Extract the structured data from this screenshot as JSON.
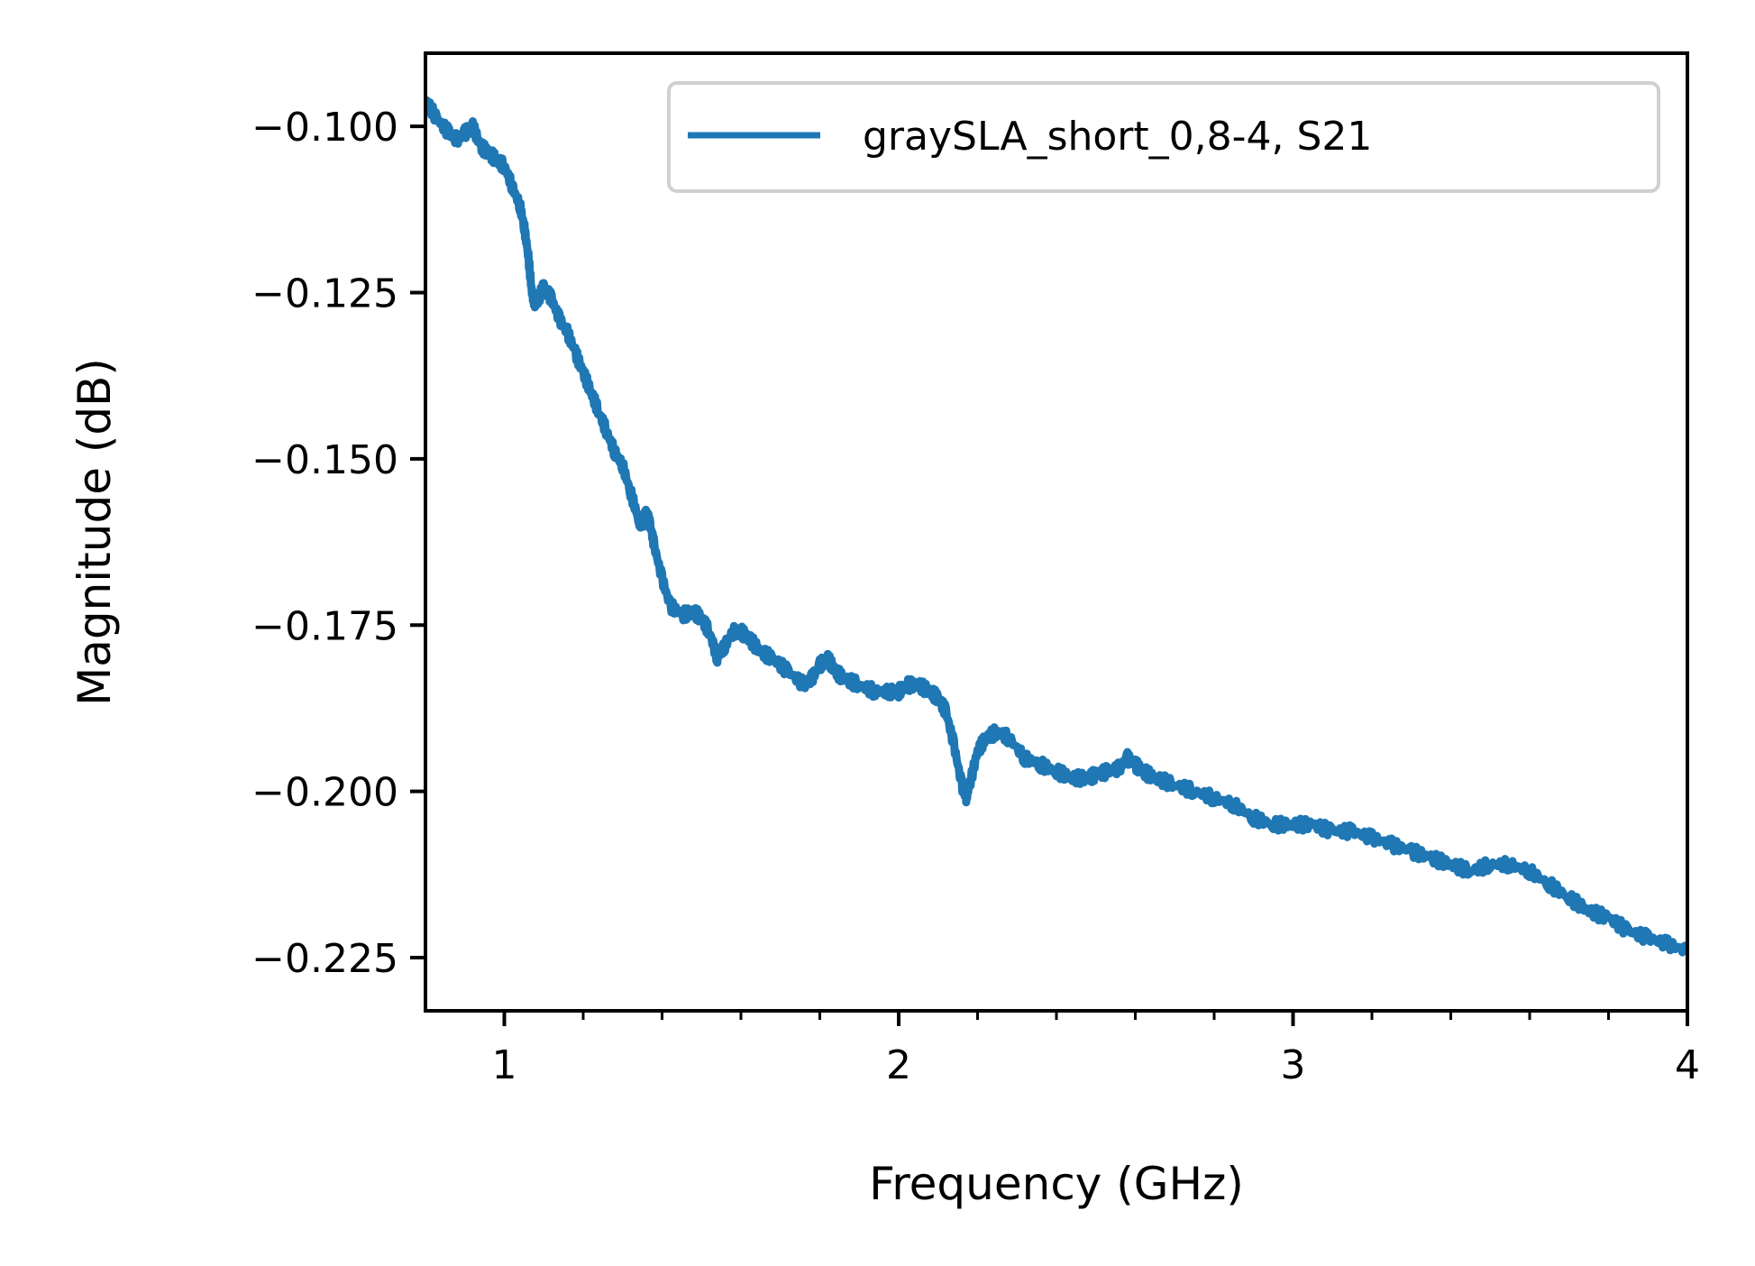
{
  "chart_data": {
    "type": "line",
    "xlabel": "Frequency (GHz)",
    "ylabel": "Magnitude (dB)",
    "xlim": [
      0.8,
      4.0
    ],
    "ylim": [
      -0.233,
      -0.089
    ],
    "x_ticks": [
      1,
      2,
      3,
      4
    ],
    "x_tick_labels": [
      "1",
      "2",
      "3",
      "4"
    ],
    "x_minor_ticks": [
      1.2,
      1.4,
      1.6,
      1.8,
      2.2,
      2.4,
      2.6,
      2.8,
      3.2,
      3.4,
      3.6,
      3.8
    ],
    "y_ticks": [
      -0.1,
      -0.125,
      -0.15,
      -0.175,
      -0.2,
      -0.225
    ],
    "y_tick_labels": [
      "−0.100",
      "−0.125",
      "−0.150",
      "−0.175",
      "−0.200",
      "−0.225"
    ],
    "grid": false,
    "legend_position": "top-right",
    "series": [
      {
        "name": "graySLA_short_0,8-4, S21",
        "color": "#1f77b4",
        "points": [
          [
            0.8,
            -0.096
          ],
          [
            0.83,
            -0.099
          ],
          [
            0.86,
            -0.101
          ],
          [
            0.88,
            -0.102
          ],
          [
            0.9,
            -0.101
          ],
          [
            0.92,
            -0.1
          ],
          [
            0.94,
            -0.103
          ],
          [
            0.96,
            -0.104
          ],
          [
            0.98,
            -0.105
          ],
          [
            1.0,
            -0.106
          ],
          [
            1.02,
            -0.109
          ],
          [
            1.04,
            -0.112
          ],
          [
            1.05,
            -0.115
          ],
          [
            1.06,
            -0.119
          ],
          [
            1.07,
            -0.125
          ],
          [
            1.08,
            -0.127
          ],
          [
            1.1,
            -0.124
          ],
          [
            1.12,
            -0.126
          ],
          [
            1.14,
            -0.129
          ],
          [
            1.16,
            -0.131
          ],
          [
            1.18,
            -0.134
          ],
          [
            1.2,
            -0.137
          ],
          [
            1.22,
            -0.14
          ],
          [
            1.24,
            -0.143
          ],
          [
            1.26,
            -0.146
          ],
          [
            1.28,
            -0.149
          ],
          [
            1.3,
            -0.151
          ],
          [
            1.32,
            -0.155
          ],
          [
            1.34,
            -0.159
          ],
          [
            1.35,
            -0.16
          ],
          [
            1.36,
            -0.158
          ],
          [
            1.37,
            -0.16
          ],
          [
            1.38,
            -0.163
          ],
          [
            1.4,
            -0.168
          ],
          [
            1.42,
            -0.172
          ],
          [
            1.45,
            -0.1735
          ],
          [
            1.48,
            -0.173
          ],
          [
            1.5,
            -0.174
          ],
          [
            1.52,
            -0.176
          ],
          [
            1.54,
            -0.18
          ],
          [
            1.56,
            -0.178
          ],
          [
            1.58,
            -0.176
          ],
          [
            1.6,
            -0.176
          ],
          [
            1.62,
            -0.177
          ],
          [
            1.65,
            -0.179
          ],
          [
            1.68,
            -0.18
          ],
          [
            1.72,
            -0.182
          ],
          [
            1.76,
            -0.184
          ],
          [
            1.78,
            -0.183
          ],
          [
            1.8,
            -0.181
          ],
          [
            1.82,
            -0.18
          ],
          [
            1.84,
            -0.182
          ],
          [
            1.86,
            -0.183
          ],
          [
            1.9,
            -0.184
          ],
          [
            1.94,
            -0.185
          ],
          [
            1.98,
            -0.185
          ],
          [
            2.0,
            -0.185
          ],
          [
            2.02,
            -0.184
          ],
          [
            2.05,
            -0.184
          ],
          [
            2.08,
            -0.185
          ],
          [
            2.1,
            -0.186
          ],
          [
            2.12,
            -0.188
          ],
          [
            2.14,
            -0.193
          ],
          [
            2.16,
            -0.199
          ],
          [
            2.17,
            -0.201
          ],
          [
            2.18,
            -0.199
          ],
          [
            2.2,
            -0.194
          ],
          [
            2.22,
            -0.192
          ],
          [
            2.25,
            -0.191
          ],
          [
            2.28,
            -0.192
          ],
          [
            2.32,
            -0.195
          ],
          [
            2.36,
            -0.196
          ],
          [
            2.4,
            -0.197
          ],
          [
            2.44,
            -0.198
          ],
          [
            2.48,
            -0.198
          ],
          [
            2.5,
            -0.1975
          ],
          [
            2.53,
            -0.197
          ],
          [
            2.56,
            -0.1965
          ],
          [
            2.58,
            -0.195
          ],
          [
            2.6,
            -0.196
          ],
          [
            2.62,
            -0.197
          ],
          [
            2.65,
            -0.198
          ],
          [
            2.7,
            -0.199
          ],
          [
            2.75,
            -0.2
          ],
          [
            2.8,
            -0.201
          ],
          [
            2.85,
            -0.202
          ],
          [
            2.9,
            -0.204
          ],
          [
            2.95,
            -0.205
          ],
          [
            3.0,
            -0.205
          ],
          [
            3.05,
            -0.205
          ],
          [
            3.1,
            -0.206
          ],
          [
            3.15,
            -0.206
          ],
          [
            3.2,
            -0.207
          ],
          [
            3.25,
            -0.208
          ],
          [
            3.3,
            -0.209
          ],
          [
            3.35,
            -0.21
          ],
          [
            3.4,
            -0.211
          ],
          [
            3.45,
            -0.212
          ],
          [
            3.5,
            -0.211
          ],
          [
            3.55,
            -0.211
          ],
          [
            3.6,
            -0.212
          ],
          [
            3.65,
            -0.214
          ],
          [
            3.7,
            -0.216
          ],
          [
            3.75,
            -0.218
          ],
          [
            3.8,
            -0.219
          ],
          [
            3.85,
            -0.221
          ],
          [
            3.9,
            -0.222
          ],
          [
            3.95,
            -0.223
          ],
          [
            4.0,
            -0.224
          ]
        ]
      }
    ]
  }
}
